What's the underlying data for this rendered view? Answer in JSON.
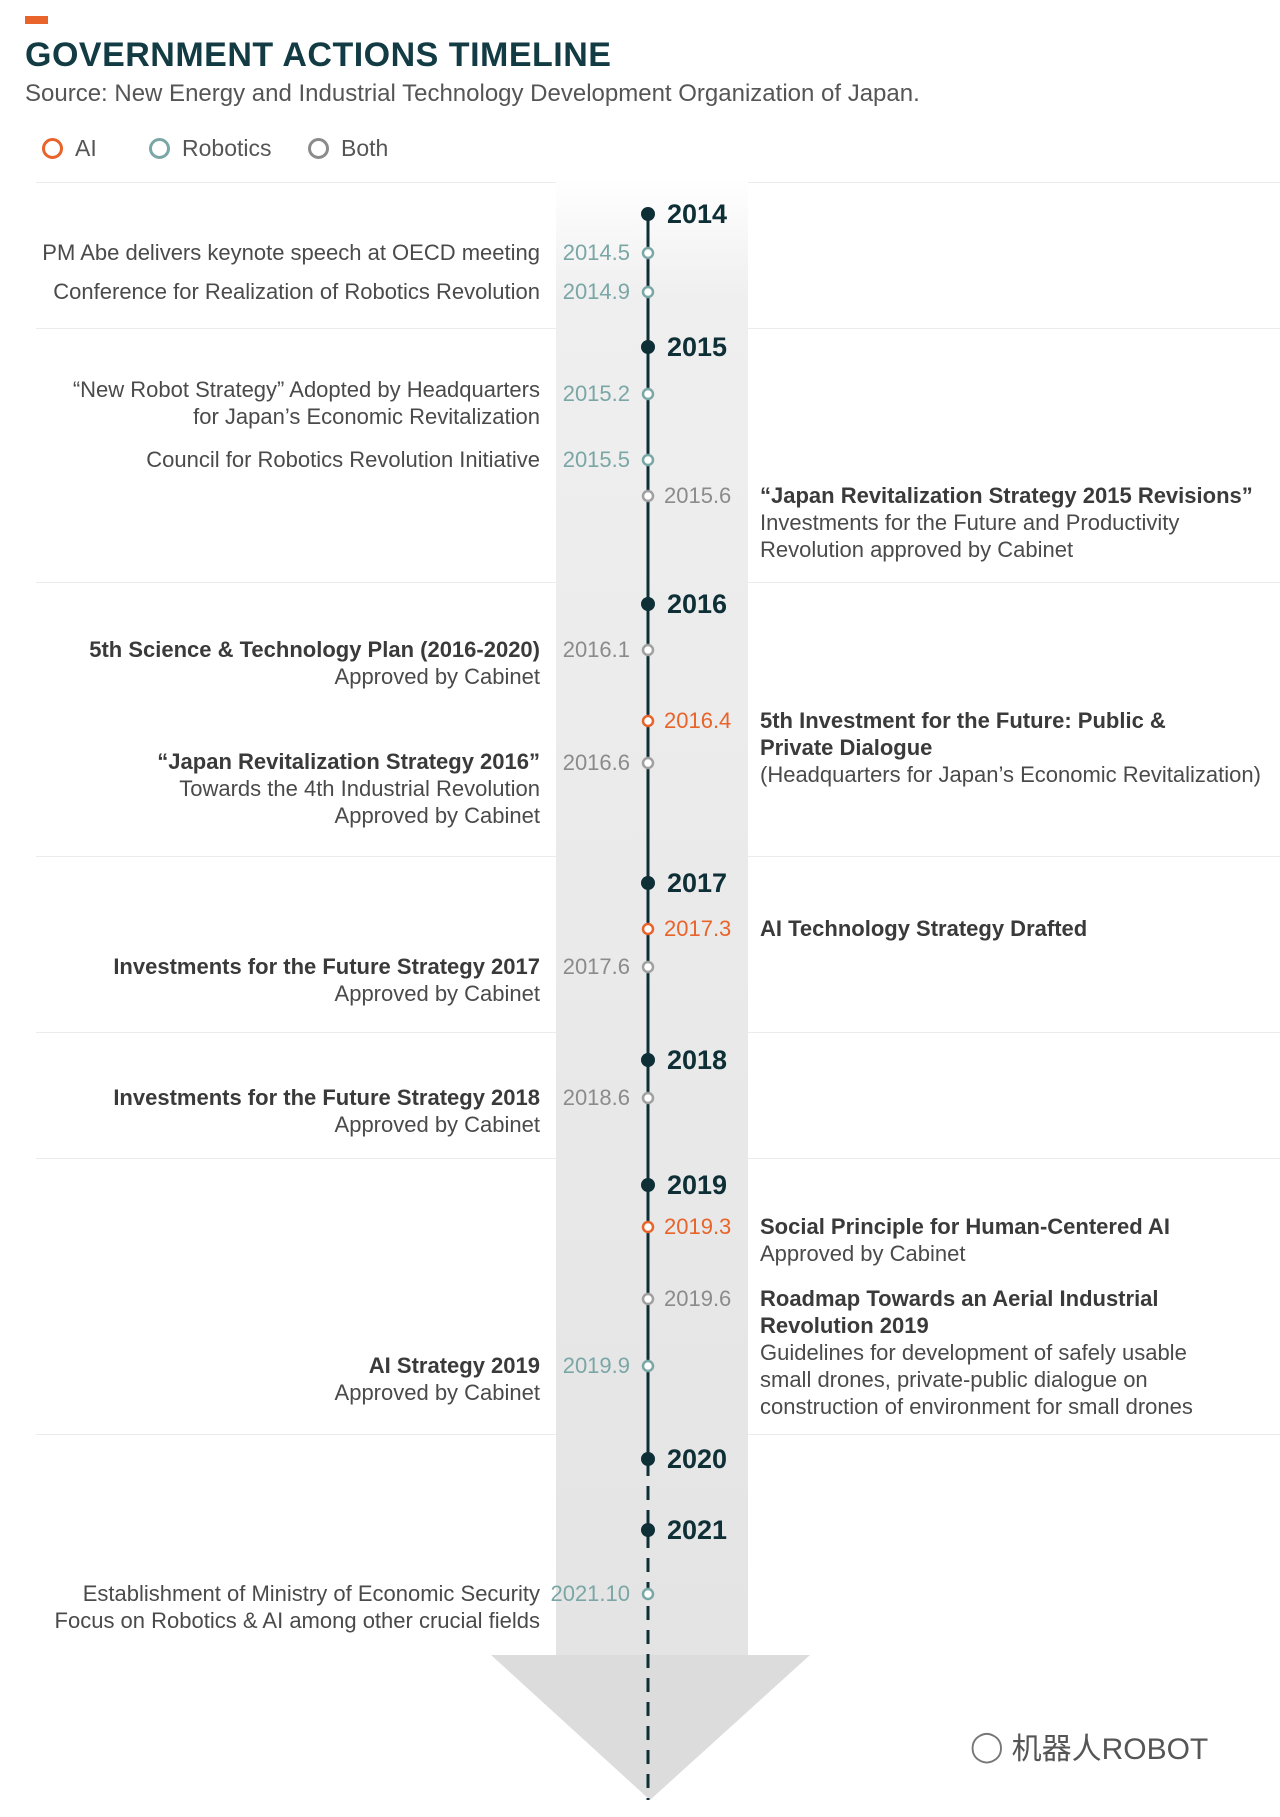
{
  "header": {
    "title": "GOVERNMENT ACTIONS TIMELINE",
    "source": "Source: New Energy and Industrial Technology Development Organization of Japan."
  },
  "legend": [
    {
      "label": "AI",
      "color": "#e8642a"
    },
    {
      "label": "Robotics",
      "color": "#7aa7a6"
    },
    {
      "label": "Both",
      "color": "#8b8b8b"
    }
  ],
  "years": [
    "2014",
    "2015",
    "2016",
    "2017",
    "2018",
    "2019",
    "2020",
    "2021"
  ],
  "events": [
    {
      "date": "2014.5",
      "category": "Robotics",
      "side": "left",
      "lines": [
        "PM Abe delivers keynote speech at OECD meeting"
      ]
    },
    {
      "date": "2014.9",
      "category": "Robotics",
      "side": "left",
      "lines": [
        "Conference for Realization of Robotics Revolution"
      ]
    },
    {
      "date": "2015.2",
      "category": "Robotics",
      "side": "left",
      "lines": [
        "“New Robot Strategy” Adopted by Headquarters",
        "for Japan’s Economic Revitalization"
      ]
    },
    {
      "date": "2015.5",
      "category": "Robotics",
      "side": "left",
      "lines": [
        "Council for Robotics Revolution Initiative"
      ]
    },
    {
      "date": "2015.6",
      "category": "Both",
      "side": "right",
      "lines": [
        "“Japan Revitalization Strategy 2015 Revisions”",
        "Investments for the Future and Productivity",
        "Revolution approved by Cabinet"
      ]
    },
    {
      "date": "2016.1",
      "category": "Both",
      "side": "left",
      "lines": [
        "5th Science & Technology Plan (2016-2020)",
        "Approved by Cabinet"
      ]
    },
    {
      "date": "2016.4",
      "category": "AI",
      "side": "right",
      "lines": [
        "5th Investment for the Future: Public &",
        "Private Dialogue",
        "(Headquarters for Japan’s Economic Revitalization)"
      ]
    },
    {
      "date": "2016.6",
      "category": "Both",
      "side": "left",
      "lines": [
        "“Japan Revitalization Strategy 2016”",
        "Towards the 4th Industrial Revolution",
        "Approved by Cabinet"
      ]
    },
    {
      "date": "2017.3",
      "category": "AI",
      "side": "right",
      "lines": [
        "AI Technology Strategy Drafted"
      ]
    },
    {
      "date": "2017.6",
      "category": "Both",
      "side": "left",
      "lines": [
        "Investments for the Future Strategy 2017",
        "Approved by Cabinet"
      ]
    },
    {
      "date": "2018.6",
      "category": "Both",
      "side": "left",
      "lines": [
        "Investments for the Future Strategy 2018",
        "Approved by Cabinet"
      ]
    },
    {
      "date": "2019.3",
      "category": "AI",
      "side": "right",
      "lines": [
        "Social Principle for Human-Centered AI",
        "Approved by Cabinet"
      ]
    },
    {
      "date": "2019.6",
      "category": "Both",
      "side": "right",
      "lines": [
        "Roadmap Towards an Aerial Industrial",
        "Revolution 2019",
        "Guidelines for development of safely usable",
        "small drones, private-public dialogue on",
        "construction of environment for small drones"
      ]
    },
    {
      "date": "2019.9",
      "category": "Robotics",
      "side": "left",
      "lines": [
        "AI Strategy 2019",
        "Approved by Cabinet"
      ]
    },
    {
      "date": "2021.10",
      "category": "Robotics",
      "side": "left",
      "lines": [
        "Establishment of Ministry of Economic Security",
        "Focus on Robotics & AI among other crucial fields"
      ]
    }
  ],
  "watermark": "机器人ROBOT"
}
